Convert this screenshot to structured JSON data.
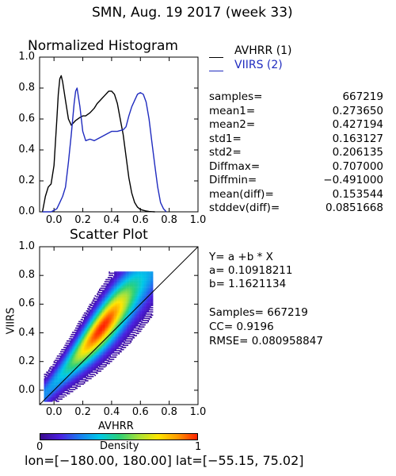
{
  "header": {
    "title": "SMN,  Aug. 19 2017 (week 33)"
  },
  "footer": {
    "region": "lon=[−180.00, 180.00] lat=[−55.15, 75.02]"
  },
  "colors": {
    "avhrr": "#000000",
    "viirs": "#1f2bbf",
    "axis": "#000000"
  },
  "chart_data": [
    {
      "type": "line",
      "title": "Normalized Histogram",
      "xlim": [
        -0.1,
        1.0
      ],
      "ylim": [
        0.0,
        1.0
      ],
      "x_ticks": [
        "0.0",
        "0.2",
        "0.4",
        "0.6",
        "0.8",
        "1.0"
      ],
      "y_ticks": [
        "0.0",
        "0.2",
        "0.4",
        "0.6",
        "0.8",
        "1.0"
      ],
      "series": [
        {
          "name": "AVHRR (1)",
          "color": "#000000",
          "x": [
            -0.08,
            -0.06,
            -0.04,
            -0.02,
            0.0,
            0.02,
            0.03,
            0.04,
            0.05,
            0.06,
            0.08,
            0.1,
            0.12,
            0.15,
            0.18,
            0.2,
            0.22,
            0.25,
            0.28,
            0.3,
            0.32,
            0.35,
            0.38,
            0.4,
            0.42,
            0.44,
            0.46,
            0.48,
            0.5,
            0.52,
            0.54,
            0.56,
            0.58,
            0.6,
            0.62,
            0.64,
            0.66,
            0.68,
            0.7
          ],
          "y": [
            0.0,
            0.1,
            0.16,
            0.18,
            0.3,
            0.6,
            0.76,
            0.86,
            0.88,
            0.84,
            0.72,
            0.6,
            0.56,
            0.59,
            0.61,
            0.62,
            0.62,
            0.64,
            0.67,
            0.7,
            0.72,
            0.75,
            0.78,
            0.78,
            0.76,
            0.7,
            0.6,
            0.5,
            0.36,
            0.22,
            0.12,
            0.06,
            0.03,
            0.015,
            0.01,
            0.005,
            0.002,
            0.001,
            0.0
          ]
        },
        {
          "name": "VIIRS (2)",
          "color": "#1f2bbf",
          "x": [
            -0.08,
            -0.06,
            -0.04,
            -0.02,
            0.0,
            0.02,
            0.04,
            0.06,
            0.08,
            0.1,
            0.12,
            0.14,
            0.15,
            0.16,
            0.18,
            0.2,
            0.22,
            0.25,
            0.28,
            0.32,
            0.36,
            0.4,
            0.44,
            0.48,
            0.5,
            0.52,
            0.54,
            0.56,
            0.58,
            0.6,
            0.62,
            0.64,
            0.66,
            0.68,
            0.7,
            0.72,
            0.74,
            0.76,
            0.78
          ],
          "y": [
            0.0,
            0.0,
            0.0,
            0.0,
            0.01,
            0.02,
            0.06,
            0.1,
            0.16,
            0.32,
            0.5,
            0.7,
            0.78,
            0.8,
            0.68,
            0.52,
            0.46,
            0.47,
            0.46,
            0.48,
            0.5,
            0.52,
            0.52,
            0.53,
            0.55,
            0.62,
            0.68,
            0.72,
            0.76,
            0.77,
            0.76,
            0.71,
            0.6,
            0.45,
            0.3,
            0.16,
            0.06,
            0.02,
            0.0
          ]
        }
      ],
      "stats": [
        {
          "label": "samples=",
          "value": "667219"
        },
        {
          "label": "mean1=",
          "value": "0.273650"
        },
        {
          "label": "mean2=",
          "value": "0.427194"
        },
        {
          "label": "std1=",
          "value": "0.163127"
        },
        {
          "label": "std2=",
          "value": "0.206135"
        },
        {
          "label": "Diffmax=",
          "value": "0.707000"
        },
        {
          "label": "Diffmin=",
          "value": "−0.491000"
        },
        {
          "label": "mean(diff)=",
          "value": "0.153544"
        },
        {
          "label": "stddev(diff)=",
          "value": "0.0851668"
        }
      ]
    },
    {
      "type": "heatmap",
      "title": "Scatter Plot",
      "xlabel": "AVHRR",
      "ylabel": "VIIRS",
      "xlim": [
        -0.1,
        1.0
      ],
      "ylim": [
        -0.1,
        1.0
      ],
      "x_ticks": [
        "0.0",
        "0.2",
        "0.4",
        "0.6",
        "0.8",
        "1.0"
      ],
      "y_ticks": [
        "0.0",
        "0.2",
        "0.4",
        "0.6",
        "0.8",
        "1.0"
      ],
      "one_to_one_line": true,
      "fit": {
        "a": 0.10918211,
        "b": 1.1621134
      },
      "fit_text": [
        "Y= a +b * X",
        "a= 0.10918211",
        "b= 1.1621134"
      ],
      "summary_text": [
        "Samples= 667219",
        "CC=  0.9196",
        "RMSE= 0.080958847"
      ],
      "colorbar": {
        "label": "Density",
        "min_label": "0",
        "max_label": "1",
        "stops": [
          "#3a0a8c",
          "#4b1fe0",
          "#1a7cf0",
          "#00c8e8",
          "#2ad07a",
          "#a6e23a",
          "#ffe600",
          "#ff9a00",
          "#ff2200"
        ]
      }
    }
  ]
}
